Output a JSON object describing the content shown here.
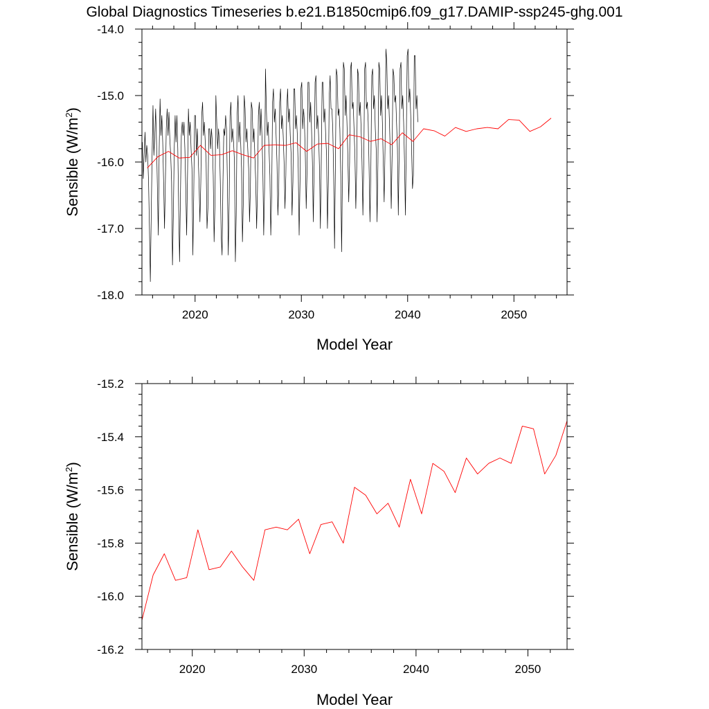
{
  "figure": {
    "title": "Global Diagnostics Timeseries b.e21.B1850cmip6.f09_g17.DAMIP-ssp245-ghg.001"
  },
  "chart_data": [
    {
      "type": "line",
      "xlabel": "Model Year",
      "ylabel": "Sensible (W/m²)",
      "ylabel_base": "Sensible (W/m",
      "ylabel_sup": "2",
      "ylabel_end": ")",
      "xlim": [
        2015.0,
        2055.0
      ],
      "ylim": [
        -18.0,
        -14.0
      ],
      "xticks": [
        2020,
        2030,
        2040,
        2050
      ],
      "yticks": [
        -18.0,
        -17.0,
        -16.0,
        -15.0,
        -14.0
      ],
      "ytick_labels": [
        "-18.0",
        "-17.0",
        "-16.0",
        "-15.0",
        "-14.0"
      ],
      "series": [
        {
          "kind": "monthly",
          "color": "#000000",
          "x_start": 2015.04,
          "x_step": 0.0833333,
          "values": [
            -15.7,
            -16.25,
            -15.9,
            -15.55,
            -16.0,
            -15.75,
            -15.9,
            -16.3,
            -17.0,
            -17.8,
            -16.8,
            -15.9,
            -15.15,
            -15.9,
            -15.6,
            -15.2,
            -15.7,
            -16.4,
            -17.1,
            -15.8,
            -15.05,
            -15.6,
            -15.3,
            -15.7,
            -16.3,
            -17.0,
            -16.3,
            -15.5,
            -15.2,
            -15.6,
            -15.25,
            -15.65,
            -15.9,
            -16.3,
            -17.55,
            -16.8,
            -15.8,
            -15.3,
            -15.7,
            -15.3,
            -15.8,
            -16.7,
            -17.5,
            -16.5,
            -15.6,
            -15.4,
            -15.6,
            -15.4,
            -15.8,
            -16.4,
            -17.1,
            -16.2,
            -15.2,
            -15.6,
            -15.4,
            -15.8,
            -16.1,
            -17.4,
            -16.5,
            -15.3,
            -15.3,
            -15.9,
            -15.5,
            -15.9,
            -16.3,
            -16.9,
            -16.3,
            -15.3,
            -15.1,
            -15.6,
            -15.4,
            -15.7,
            -16.0,
            -17.0,
            -16.7,
            -15.5,
            -15.5,
            -15.8,
            -15.5,
            -15.7,
            -16.2,
            -17.2,
            -16.6,
            -15.0,
            -15.4,
            -15.8,
            -15.5,
            -15.7,
            -16.3,
            -17.1,
            -17.4,
            -16.3,
            -15.5,
            -15.6,
            -15.3,
            -15.5,
            -16.3,
            -17.4,
            -16.6,
            -15.3,
            -15.1,
            -15.7,
            -15.5,
            -15.7,
            -16.0,
            -17.5,
            -16.8,
            -15.3,
            -15.0,
            -15.7,
            -15.4,
            -15.7,
            -16.1,
            -17.2,
            -16.6,
            -15.0,
            -15.2,
            -15.7,
            -15.5,
            -15.8,
            -16.1,
            -16.9,
            -16.4,
            -15.1,
            -15.2,
            -15.7,
            -15.5,
            -15.9,
            -16.3,
            -17.0,
            -16.4,
            -15.3,
            -15.1,
            -15.6,
            -15.2,
            -15.6,
            -16.1,
            -17.1,
            -16.4,
            -14.6,
            -15.2,
            -15.6,
            -15.4,
            -15.8,
            -16.2,
            -17.1,
            -16.5,
            -15.1,
            -14.9,
            -15.4,
            -15.2,
            -15.6,
            -16.0,
            -16.8,
            -16.4,
            -15.1,
            -14.9,
            -15.5,
            -15.3,
            -15.6,
            -16.0,
            -16.7,
            -16.2,
            -15.2,
            -14.9,
            -15.4,
            -15.2,
            -15.6,
            -15.9,
            -16.8,
            -16.3,
            -14.9,
            -14.9,
            -15.5,
            -15.3,
            -15.6,
            -16.1,
            -17.1,
            -16.3,
            -14.9,
            -14.8,
            -15.5,
            -15.2,
            -15.4,
            -15.9,
            -16.7,
            -16.1,
            -14.8,
            -14.8,
            -15.4,
            -15.1,
            -15.5,
            -16.0,
            -16.9,
            -16.0,
            -14.8,
            -14.7,
            -15.5,
            -15.3,
            -15.6,
            -16.1,
            -17.0,
            -16.0,
            -14.8,
            -14.8,
            -15.4,
            -15.2,
            -15.6,
            -15.9,
            -17.0,
            -16.3,
            -15.0,
            -14.7,
            -15.2,
            -15.2,
            -15.5,
            -16.2,
            -17.3,
            -16.0,
            -14.6,
            -14.7,
            -15.3,
            -15.2,
            -15.5,
            -16.2,
            -17.35,
            -16.1,
            -14.5,
            -14.6,
            -15.3,
            -15.0,
            -15.4,
            -15.9,
            -16.6,
            -16.0,
            -14.6,
            -14.5,
            -15.2,
            -15.1,
            -15.5,
            -15.9,
            -16.7,
            -16.1,
            -14.6,
            -14.7,
            -15.3,
            -15.1,
            -15.5,
            -16.0,
            -16.8,
            -16.0,
            -14.6,
            -14.5,
            -15.2,
            -15.1,
            -15.4,
            -16.1,
            -16.9,
            -16.1,
            -14.7,
            -14.6,
            -15.2,
            -15.0,
            -15.5,
            -15.8,
            -16.9,
            -16.0,
            -14.5,
            -14.6,
            -15.3,
            -15.0,
            -15.4,
            -16.0,
            -16.6,
            -15.8,
            -14.3,
            -14.5,
            -15.2,
            -15.0,
            -15.4,
            -15.9,
            -16.7,
            -15.9,
            -14.6,
            -14.7,
            -15.1,
            -15.0,
            -15.4,
            -15.8,
            -16.8,
            -15.8,
            -14.6,
            -14.5,
            -15.2,
            -15.0,
            -15.4,
            -16.0,
            -16.8,
            -15.7,
            -14.4,
            -14.3,
            -15.1,
            -14.9,
            -15.3,
            -15.8,
            -16.4,
            -16.2,
            -14.4,
            -14.4,
            -15.2,
            -15.0,
            -15.4
          ]
        },
        {
          "kind": "annual",
          "color": "#ff0000",
          "x": [
            2015.5,
            2016.5,
            2017.5,
            2018.5,
            2019.5,
            2020.5,
            2021.5,
            2022.5,
            2023.5,
            2024.5,
            2025.5,
            2026.5,
            2027.5,
            2028.5,
            2029.5,
            2030.5,
            2031.5,
            2032.5,
            2033.5,
            2034.5,
            2035.5,
            2036.5,
            2037.5,
            2038.5,
            2039.5,
            2040.5,
            2041.5,
            2042.5,
            2043.5,
            2044.5,
            2045.5,
            2046.5,
            2047.5,
            2048.5,
            2049.5,
            2050.5,
            2051.5,
            2052.5,
            2053.5
          ],
          "values": [
            -16.09,
            -15.92,
            -15.84,
            -15.94,
            -15.93,
            -15.75,
            -15.9,
            -15.89,
            -15.83,
            -15.89,
            -15.94,
            -15.75,
            -15.74,
            -15.75,
            -15.71,
            -15.84,
            -15.73,
            -15.72,
            -15.8,
            -15.59,
            -15.62,
            -15.69,
            -15.65,
            -15.74,
            -15.56,
            -15.69,
            -15.5,
            -15.53,
            -15.61,
            -15.48,
            -15.54,
            -15.5,
            -15.48,
            -15.5,
            -15.36,
            -15.37,
            -15.54,
            -15.47,
            -15.34
          ]
        }
      ]
    },
    {
      "type": "line",
      "xlabel": "Model Year",
      "ylabel": "Sensible (W/m²)",
      "ylabel_base": "Sensible (W/m",
      "ylabel_sup": "2",
      "ylabel_end": ")",
      "xlim": [
        2015.5,
        2053.5
      ],
      "ylim": [
        -16.2,
        -15.2
      ],
      "xticks": [
        2020,
        2030,
        2040,
        2050
      ],
      "yticks": [
        -16.2,
        -16.0,
        -15.8,
        -15.6,
        -15.4,
        -15.2
      ],
      "ytick_labels": [
        "-16.2",
        "-16.0",
        "-15.8",
        "-15.6",
        "-15.4",
        "-15.2"
      ],
      "series": [
        {
          "kind": "annual",
          "color": "#ff0000",
          "x": [
            2015.5,
            2016.5,
            2017.5,
            2018.5,
            2019.5,
            2020.5,
            2021.5,
            2022.5,
            2023.5,
            2024.5,
            2025.5,
            2026.5,
            2027.5,
            2028.5,
            2029.5,
            2030.5,
            2031.5,
            2032.5,
            2033.5,
            2034.5,
            2035.5,
            2036.5,
            2037.5,
            2038.5,
            2039.5,
            2040.5,
            2041.5,
            2042.5,
            2043.5,
            2044.5,
            2045.5,
            2046.5,
            2047.5,
            2048.5,
            2049.5,
            2050.5,
            2051.5,
            2052.5,
            2053.5
          ],
          "values": [
            -16.09,
            -15.92,
            -15.84,
            -15.94,
            -15.93,
            -15.75,
            -15.9,
            -15.89,
            -15.83,
            -15.89,
            -15.94,
            -15.75,
            -15.74,
            -15.75,
            -15.71,
            -15.84,
            -15.73,
            -15.72,
            -15.8,
            -15.59,
            -15.62,
            -15.69,
            -15.65,
            -15.74,
            -15.56,
            -15.69,
            -15.5,
            -15.53,
            -15.61,
            -15.48,
            -15.54,
            -15.5,
            -15.48,
            -15.5,
            -15.36,
            -15.37,
            -15.54,
            -15.47,
            -15.34
          ]
        }
      ]
    }
  ]
}
